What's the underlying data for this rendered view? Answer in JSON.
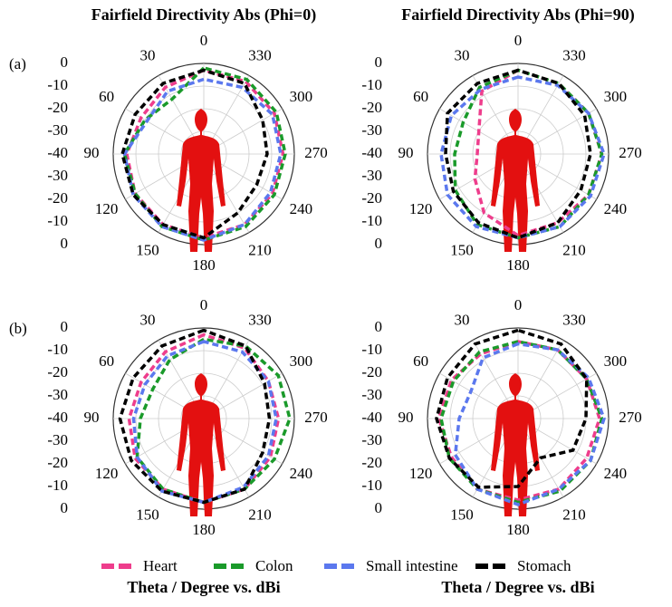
{
  "legend": [
    {
      "name": "Heart",
      "color": "#ee3d8c"
    },
    {
      "name": "Colon",
      "color": "#1a9a2a"
    },
    {
      "name": "Small intestine",
      "color": "#5b78ee"
    },
    {
      "name": "Stomach",
      "color": "#000000"
    }
  ],
  "chart_data": [
    {
      "type": "polar",
      "title": "Fairfield Directivity Abs (Phi=0)",
      "panel_label": "(a)",
      "theta": [
        0,
        30,
        60,
        90,
        120,
        150,
        180,
        210,
        240,
        270,
        300,
        330
      ],
      "rlim": [
        -40,
        0
      ],
      "rticks": [
        -40,
        -30,
        -20,
        -10,
        0
      ],
      "grid": true,
      "series": [
        {
          "values": [
            -3,
            -6,
            -8,
            -6,
            -5,
            -4,
            -3,
            -4,
            -5,
            -5,
            -4,
            -3
          ]
        },
        {
          "values": [
            -2,
            -12,
            -10,
            -5,
            -5,
            -3,
            -2,
            -3,
            -4,
            -4,
            -3,
            -2
          ]
        },
        {
          "values": [
            -7,
            -8,
            -11,
            -5,
            -4,
            -3,
            -2,
            -4,
            -6,
            -6,
            -5,
            -6
          ]
        },
        {
          "values": [
            -3,
            -4,
            -5,
            -4,
            -4,
            -4,
            -3,
            -10,
            -13,
            -12,
            -10,
            -4
          ]
        }
      ]
    },
    {
      "type": "polar",
      "title": "Fairfield Directivity Abs (Phi=90)",
      "theta": [
        0,
        30,
        60,
        90,
        120,
        150,
        180,
        210,
        240,
        270,
        300,
        330
      ],
      "rlim": [
        -40,
        0
      ],
      "rticks": [
        -40,
        -30,
        -20,
        -10,
        0
      ],
      "grid": true,
      "series": [
        {
          "values": [
            -3,
            -8,
            -20,
            -22,
            -18,
            -10,
            -4,
            -5,
            -4,
            -3,
            -4,
            -4
          ]
        },
        {
          "values": [
            -3,
            -6,
            -12,
            -12,
            -8,
            -4,
            -3,
            -3,
            -4,
            -3,
            -4,
            -4
          ]
        },
        {
          "values": [
            -6,
            -7,
            -6,
            -6,
            -4,
            -3,
            -3,
            -3,
            -3,
            -2,
            -4,
            -5
          ]
        },
        {
          "values": [
            -3,
            -4,
            -4,
            -8,
            -7,
            -5,
            -3,
            -5,
            -8,
            -8,
            -6,
            -4
          ]
        }
      ]
    },
    {
      "type": "polar",
      "panel_label": "(b)",
      "axis_label": "Theta / Degree vs. dBi",
      "theta": [
        0,
        30,
        60,
        90,
        120,
        150,
        180,
        210,
        240,
        270,
        300,
        330
      ],
      "rlim": [
        -40,
        0
      ],
      "rticks": [
        -40,
        -30,
        -20,
        -10,
        0
      ],
      "grid": true,
      "series": [
        {
          "values": [
            -3,
            -6,
            -8,
            -7,
            -5,
            -4,
            -3,
            -4,
            -6,
            -7,
            -7,
            -4
          ]
        },
        {
          "values": [
            -5,
            -10,
            -14,
            -12,
            -6,
            -4,
            -3,
            -4,
            -4,
            -2,
            -2,
            -3
          ]
        },
        {
          "values": [
            -6,
            -8,
            -10,
            -9,
            -6,
            -3,
            -3,
            -5,
            -7,
            -8,
            -7,
            -6
          ]
        },
        {
          "values": [
            -1,
            -3,
            -4,
            -3,
            -3,
            -3,
            -3,
            -4,
            -10,
            -11,
            -9,
            -3
          ]
        }
      ]
    },
    {
      "type": "polar",
      "axis_label": "Theta / Degree vs. dBi",
      "theta": [
        0,
        30,
        60,
        90,
        120,
        150,
        180,
        210,
        240,
        270,
        300,
        330
      ],
      "rlim": [
        -40,
        0
      ],
      "rticks": [
        -40,
        -30,
        -20,
        -10,
        0
      ],
      "grid": true,
      "series": [
        {
          "values": [
            -6,
            -7,
            -6,
            -5,
            -6,
            -4,
            -4,
            -4,
            -5,
            -4,
            -5,
            -5
          ]
        },
        {
          "values": [
            -6,
            -6,
            -7,
            -6,
            -5,
            -4,
            -3,
            -3,
            -3,
            -3,
            -5,
            -5
          ]
        },
        {
          "values": [
            -7,
            -9,
            -16,
            -14,
            -8,
            -4,
            -2,
            -4,
            -3,
            -2,
            -4,
            -5
          ]
        },
        {
          "values": [
            -1,
            -2,
            -4,
            -4,
            -5,
            -5,
            -10,
            -20,
            -12,
            -10,
            -5,
            -2
          ]
        }
      ]
    }
  ]
}
